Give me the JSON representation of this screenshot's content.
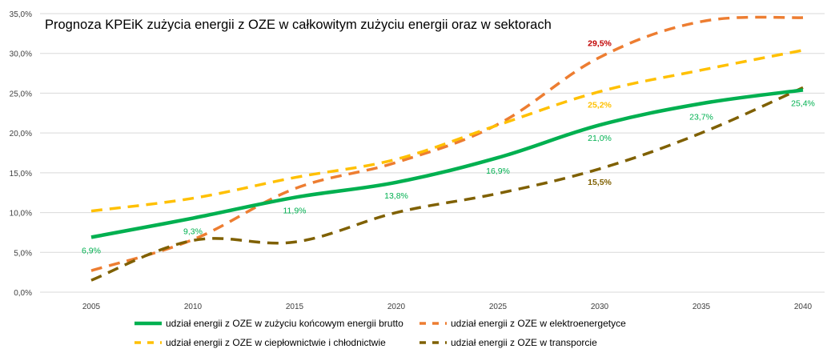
{
  "chart_data": {
    "type": "line",
    "title": "Prognoza KPEiK zużycia energii z OZE w całkowitym zużyciu energii oraz w sektorach",
    "xlabel": "",
    "ylabel": "",
    "x": [
      "2005",
      "2010",
      "2015",
      "2020",
      "2025",
      "2030",
      "2035",
      "2040"
    ],
    "ylim": [
      0,
      35
    ],
    "yticks": [
      0,
      5,
      10,
      15,
      20,
      25,
      30,
      35
    ],
    "ytick_labels": [
      "0,0%",
      "5,0%",
      "10,0%",
      "15,0%",
      "20,0%",
      "25,0%",
      "30,0%",
      "35,0%"
    ],
    "grid": "horizontal",
    "legend_position": "bottom",
    "series": [
      {
        "name": "udział energii z OZE w zużyciu końcowym energii brutto",
        "color": "#00B050",
        "style": "solid",
        "values": [
          6.9,
          9.3,
          11.9,
          13.8,
          16.9,
          21.0,
          23.7,
          25.4
        ],
        "labels": [
          {
            "index": 0,
            "text": "6,9%",
            "color": "#00B050",
            "position": "below"
          },
          {
            "index": 1,
            "text": "9,3%",
            "color": "#00B050",
            "position": "below"
          },
          {
            "index": 2,
            "text": "11,9%",
            "color": "#00B050",
            "position": "below"
          },
          {
            "index": 3,
            "text": "13,8%",
            "color": "#00B050",
            "position": "below"
          },
          {
            "index": 4,
            "text": "16,9%",
            "color": "#00B050",
            "position": "below"
          },
          {
            "index": 5,
            "text": "21,0%",
            "color": "#00B050",
            "position": "below"
          },
          {
            "index": 6,
            "text": "23,7%",
            "color": "#00B050",
            "position": "below"
          },
          {
            "index": 7,
            "text": "25,4%",
            "color": "#00B050",
            "position": "below"
          }
        ]
      },
      {
        "name": "udział energii z OZE w elektroenergetyce",
        "color": "#ED7D31",
        "style": "dashed",
        "values": [
          2.7,
          6.6,
          13.0,
          16.3,
          21.1,
          29.5,
          34.0,
          34.5
        ],
        "labels": [
          {
            "index": 5,
            "text": "29,5%",
            "color": "#C00000",
            "position": "above"
          }
        ]
      },
      {
        "name": "udział energii z OZE w ciepłownictwie i chłodnictwie",
        "color": "#FFC000",
        "style": "dashed",
        "values": [
          10.2,
          11.8,
          14.4,
          16.7,
          21.0,
          25.2,
          27.9,
          30.4
        ],
        "labels": [
          {
            "index": 5,
            "text": "25,2%",
            "color": "#FFC000",
            "position": "below"
          }
        ]
      },
      {
        "name": "udział energii z OZE w transporcie",
        "color": "#7F6000",
        "style": "dashed",
        "values": [
          1.5,
          6.5,
          6.3,
          10.0,
          12.4,
          15.5,
          20.0,
          25.7
        ],
        "labels": [
          {
            "index": 5,
            "text": "15,5%",
            "color": "#7F6000",
            "position": "below"
          }
        ]
      }
    ]
  }
}
